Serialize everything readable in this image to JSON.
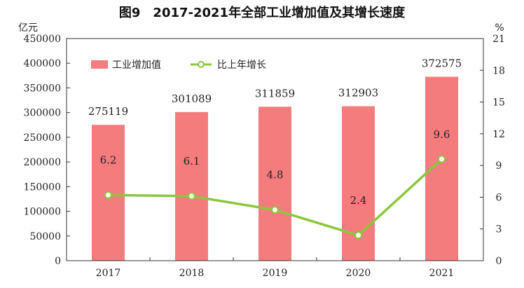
{
  "chart_data": {
    "type": "bar",
    "title": "图9　2017-2021年全部工业增加值及其增长速度",
    "left_unit": "亿元",
    "right_unit": "%",
    "categories": [
      "2017",
      "2018",
      "2019",
      "2020",
      "2021"
    ],
    "series": [
      {
        "name": "工业增加值",
        "type": "bar",
        "axis": "left",
        "values": [
          275119,
          301089,
          311859,
          312903,
          372575
        ],
        "labels": [
          "275119",
          "301089",
          "311859",
          "312903",
          "372575"
        ],
        "color": "#f47c7c"
      },
      {
        "name": "比上年增长",
        "type": "line",
        "axis": "right",
        "values": [
          6.2,
          6.1,
          4.8,
          2.4,
          9.6
        ],
        "labels": [
          "6.2",
          "6.1",
          "4.8",
          "2.4",
          "9.6"
        ],
        "color": "#8cc63f"
      }
    ],
    "ylim_left": [
      0,
      450000
    ],
    "ylim_right": [
      0,
      21
    ],
    "yticks_left": [
      "0",
      "50000",
      "100000",
      "150000",
      "200000",
      "250000",
      "300000",
      "350000",
      "400000",
      "450000"
    ],
    "yticks_right": [
      "0",
      "3",
      "6",
      "9",
      "12",
      "15",
      "18",
      "21"
    ],
    "legend_position": "top-left",
    "grid": false
  }
}
